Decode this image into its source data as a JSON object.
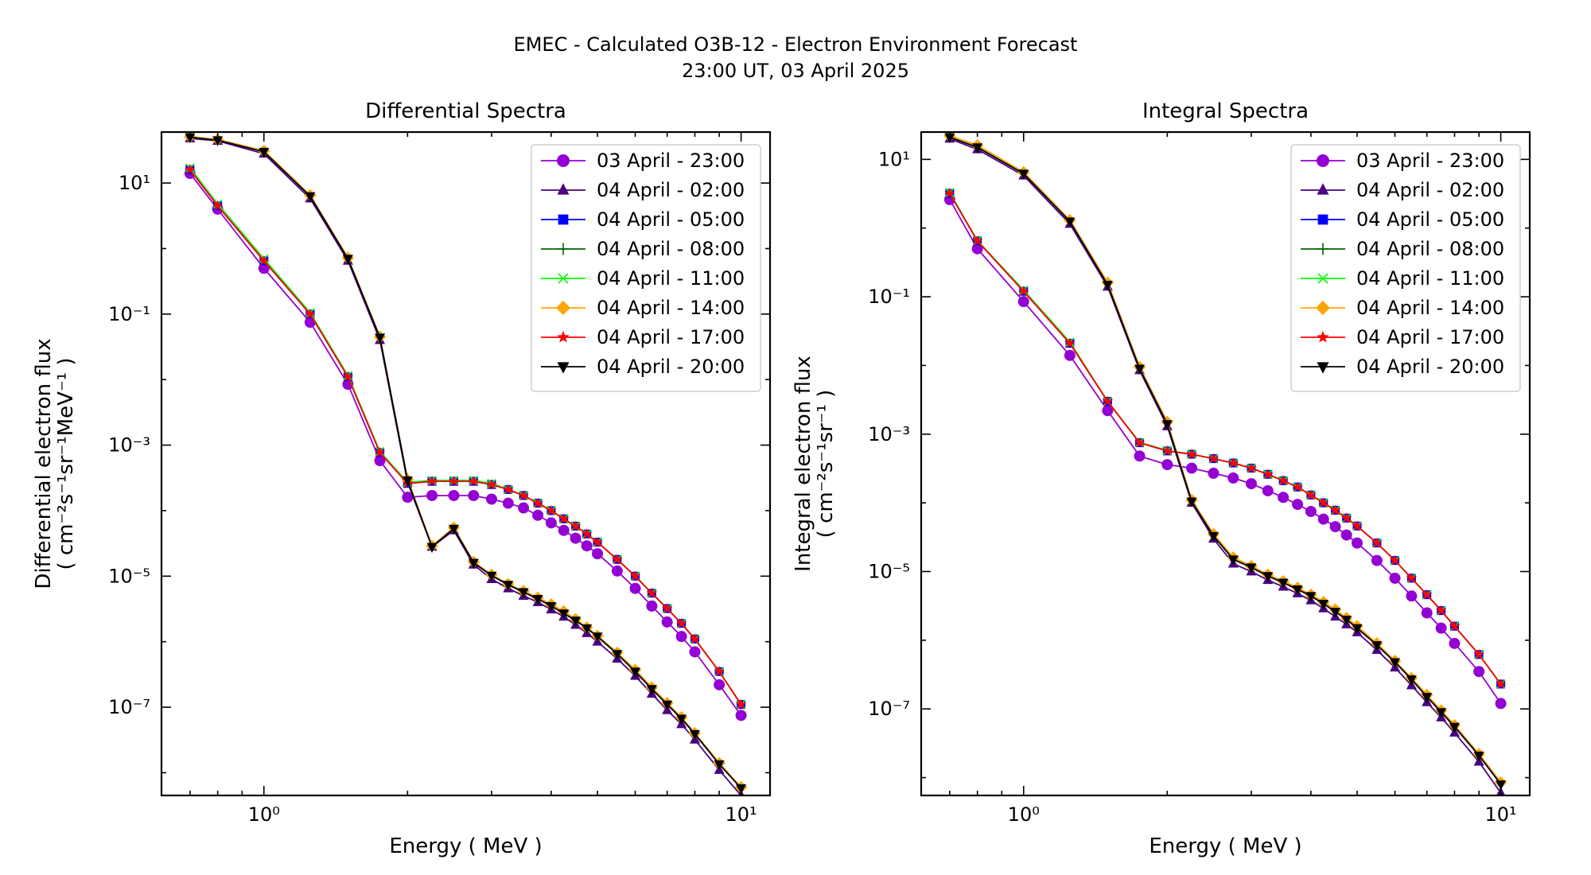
{
  "suptitle": {
    "line1": "EMEC - Calculated O3B-12 - Electron Environment Forecast",
    "line2": "23:00 UT, 03 April 2025"
  },
  "styles": [
    {
      "color": "#9400D3",
      "marker": "circle"
    },
    {
      "color": "#4B0082",
      "marker": "triangle-up"
    },
    {
      "color": "#0000FF",
      "marker": "square"
    },
    {
      "color": "#006400",
      "marker": "plus"
    },
    {
      "color": "#00FF00",
      "marker": "x"
    },
    {
      "color": "#FFA500",
      "marker": "diamond"
    },
    {
      "color": "#FF0000",
      "marker": "star"
    },
    {
      "color": "#000000",
      "marker": "triangle-down"
    }
  ],
  "chart_data": [
    {
      "type": "line",
      "title": "Differential Spectra",
      "xlabel": "Energy ( MeV )",
      "ylabel_line1": "Differential electron flux",
      "ylabel_line2": "( cm⁻²s⁻¹sr⁻¹MeV⁻¹ )",
      "xscale": "log",
      "yscale": "log",
      "xlim": [
        0.61,
        11.5
      ],
      "ylim": [
        4.5e-09,
        60
      ],
      "xticks": [
        1,
        10
      ],
      "xtick_labels": [
        "10⁰",
        "10¹"
      ],
      "yticks": [
        1e-07,
        1e-05,
        0.001,
        0.1,
        10
      ],
      "ytick_labels": [
        "10⁻⁷",
        "10⁻⁵",
        "10⁻³",
        "10⁻¹",
        "10¹"
      ],
      "legend_loc": "upper right",
      "x": [
        0.7,
        0.8,
        1.0,
        1.25,
        1.5,
        1.75,
        2.0,
        2.25,
        2.5,
        2.75,
        3.0,
        3.25,
        3.5,
        3.75,
        4.0,
        4.25,
        4.5,
        4.75,
        5.0,
        5.5,
        6.0,
        6.5,
        7.0,
        7.5,
        8.0,
        9.0,
        10.0
      ],
      "series": [
        {
          "name": "03 April - 23:00",
          "values": [
            14,
            4,
            0.5,
            0.075,
            0.0085,
            0.00058,
            0.00016,
            0.00017,
            0.00017,
            0.00017,
            0.00015,
            0.00013,
            0.00011,
            8.5e-05,
            6.5e-05,
            5e-05,
            3.8e-05,
            2.9e-05,
            2.2e-05,
            1.2e-05,
            6.5e-06,
            3.5e-06,
            2e-06,
            1.2e-06,
            7e-07,
            2.2e-07,
            7.5e-08
          ]
        },
        {
          "name": "04 April - 02:00",
          "values": [
            48,
            44,
            28,
            5.8,
            0.65,
            0.04,
            0.00027,
            2.8e-05,
            5e-05,
            1.5e-05,
            9e-06,
            6.5e-06,
            5e-06,
            4e-06,
            3.1e-06,
            2.4e-06,
            1.8e-06,
            1.35e-06,
            1e-06,
            5.5e-07,
            3e-07,
            1.6e-07,
            9e-08,
            5.5e-08,
            3.2e-08,
            1.1e-08,
            4.5e-09
          ]
        },
        {
          "name": "04 April - 05:00",
          "values": [
            16,
            4.5,
            0.65,
            0.1,
            0.011,
            0.00077,
            0.00026,
            0.00028,
            0.00028,
            0.00028,
            0.00025,
            0.00021,
            0.00017,
            0.00013,
            0.0001,
            7.5e-05,
            5.8e-05,
            4.4e-05,
            3.3e-05,
            1.8e-05,
            1e-05,
            5.5e-06,
            3.2e-06,
            1.9e-06,
            1.1e-06,
            3.5e-07,
            1.1e-07
          ]
        },
        {
          "name": "04 April - 08:00",
          "values": [
            51,
            46,
            31,
            6.5,
            0.72,
            0.045,
            0.0003,
            2.9e-05,
            5.5e-05,
            1.65e-05,
            1.05e-05,
            7.6e-06,
            5.9e-06,
            4.7e-06,
            3.7e-06,
            2.9e-06,
            2.2e-06,
            1.65e-06,
            1.23e-06,
            6.8e-07,
            3.7e-07,
            2e-07,
            1.15e-07,
            7e-08,
            4e-08,
            1.4e-08,
            6e-09
          ]
        },
        {
          "name": "04 April - 11:00",
          "values": [
            17,
            4.8,
            0.7,
            0.105,
            0.0115,
            0.0008,
            0.00027,
            0.00029,
            0.00029,
            0.00029,
            0.00026,
            0.00021,
            0.00017,
            0.00013,
            0.0001,
            7.5e-05,
            5.8e-05,
            4.4e-05,
            3.3e-05,
            1.8e-05,
            1e-05,
            5.5e-06,
            3.2e-06,
            1.9e-06,
            1.1e-06,
            3.5e-07,
            1.1e-07
          ]
        },
        {
          "name": "04 April - 14:00",
          "values": [
            51,
            46,
            31,
            6.5,
            0.72,
            0.045,
            0.0003,
            2.9e-05,
            5.5e-05,
            1.65e-05,
            1.05e-05,
            7.6e-06,
            5.9e-06,
            4.7e-06,
            3.7e-06,
            2.9e-06,
            2.2e-06,
            1.65e-06,
            1.23e-06,
            6.8e-07,
            3.7e-07,
            2e-07,
            1.15e-07,
            7e-08,
            4e-08,
            1.4e-08,
            6e-09
          ]
        },
        {
          "name": "04 April - 17:00",
          "values": [
            16,
            4.5,
            0.65,
            0.1,
            0.011,
            0.00077,
            0.00026,
            0.00028,
            0.00028,
            0.00028,
            0.00025,
            0.00021,
            0.00017,
            0.00013,
            0.0001,
            7.5e-05,
            5.8e-05,
            4.4e-05,
            3.3e-05,
            1.8e-05,
            1e-05,
            5.5e-06,
            3.2e-06,
            1.9e-06,
            1.1e-06,
            3.5e-07,
            1.1e-07
          ]
        },
        {
          "name": "04 April - 20:00",
          "values": [
            50,
            45,
            30,
            6.3,
            0.7,
            0.044,
            0.00029,
            2.8e-05,
            5.3e-05,
            1.6e-05,
            1.02e-05,
            7.4e-06,
            5.7e-06,
            4.5e-06,
            3.5e-06,
            2.7e-06,
            2.1e-06,
            1.6e-06,
            1.2e-06,
            6.5e-07,
            3.5e-07,
            1.9e-07,
            1.1e-07,
            6.7e-08,
            3.9e-08,
            1.35e-08,
            5.8e-09
          ]
        }
      ]
    },
    {
      "type": "line",
      "title": "Integral Spectra",
      "xlabel": "Energy ( MeV )",
      "ylabel_line1": "Integral electron flux",
      "ylabel_line2": "( cm⁻²s⁻¹sr⁻¹ )",
      "xscale": "log",
      "yscale": "log",
      "xlim": [
        0.61,
        11.5
      ],
      "ylim": [
        5.5e-09,
        25
      ],
      "xticks": [
        1,
        10
      ],
      "xtick_labels": [
        "10⁰",
        "10¹"
      ],
      "yticks": [
        1e-07,
        1e-05,
        0.001,
        0.1,
        10
      ],
      "ytick_labels": [
        "10⁻⁷",
        "10⁻⁵",
        "10⁻³",
        "10⁻¹",
        "10¹"
      ],
      "legend_loc": "upper right",
      "x": [
        0.7,
        0.8,
        1.0,
        1.25,
        1.5,
        1.75,
        2.0,
        2.25,
        2.5,
        2.75,
        3.0,
        3.25,
        3.5,
        3.75,
        4.0,
        4.25,
        4.5,
        4.75,
        5.0,
        5.5,
        6.0,
        6.5,
        7.0,
        7.5,
        8.0,
        9.0,
        10.0
      ],
      "series": [
        {
          "name": "03 April - 23:00",
          "values": [
            2.6,
            0.5,
            0.085,
            0.014,
            0.0022,
            0.00048,
            0.00036,
            0.00032,
            0.00027,
            0.00023,
            0.00019,
            0.00015,
            0.00012,
            9.5e-05,
            7.5e-05,
            5.8e-05,
            4.5e-05,
            3.4e-05,
            2.6e-05,
            1.45e-05,
            8e-06,
            4.4e-06,
            2.5e-06,
            1.5e-06,
            9e-07,
            3.5e-07,
            1.2e-07
          ]
        },
        {
          "name": "04 April - 02:00",
          "values": [
            20,
            14,
            5.8,
            1.15,
            0.14,
            0.0085,
            0.0013,
            0.0001,
            3e-05,
            1.3e-05,
            1e-05,
            7.5e-06,
            6e-06,
            4.8e-06,
            3.8e-06,
            2.9e-06,
            2.2e-06,
            1.7e-06,
            1.3e-06,
            7.2e-07,
            4e-07,
            2.2e-07,
            1.25e-07,
            7.5e-08,
            4.5e-08,
            1.7e-08,
            6e-09
          ]
        },
        {
          "name": "04 April - 05:00",
          "values": [
            3.2,
            0.65,
            0.12,
            0.021,
            0.003,
            0.00075,
            0.00057,
            0.00051,
            0.00044,
            0.00038,
            0.00032,
            0.00026,
            0.00021,
            0.00017,
            0.00013,
            0.0001,
            7.8e-05,
            6e-05,
            4.6e-05,
            2.6e-05,
            1.45e-05,
            8e-06,
            4.6e-06,
            2.7e-06,
            1.6e-06,
            6.2e-07,
            2.3e-07
          ]
        },
        {
          "name": "04 April - 08:00",
          "values": [
            22,
            16,
            6.5,
            1.3,
            0.16,
            0.0095,
            0.0015,
            0.00011,
            3.5e-05,
            1.6e-05,
            1.2e-05,
            9e-06,
            7.2e-06,
            5.8e-06,
            4.6e-06,
            3.6e-06,
            2.8e-06,
            2.1e-06,
            1.6e-06,
            9e-07,
            5e-07,
            2.8e-07,
            1.6e-07,
            9.5e-08,
            5.8e-08,
            2.2e-08,
            8.5e-09
          ]
        },
        {
          "name": "04 April - 11:00",
          "values": [
            3.3,
            0.66,
            0.125,
            0.022,
            0.003,
            0.00076,
            0.00058,
            0.00051,
            0.00044,
            0.00038,
            0.00032,
            0.00026,
            0.00021,
            0.00017,
            0.00013,
            0.0001,
            7.8e-05,
            6e-05,
            4.6e-05,
            2.6e-05,
            1.45e-05,
            8e-06,
            4.6e-06,
            2.7e-06,
            1.6e-06,
            6.2e-07,
            2.3e-07
          ]
        },
        {
          "name": "04 April - 14:00",
          "values": [
            22,
            16,
            6.5,
            1.3,
            0.16,
            0.0095,
            0.0015,
            0.00011,
            3.5e-05,
            1.6e-05,
            1.2e-05,
            9e-06,
            7.2e-06,
            5.8e-06,
            4.6e-06,
            3.6e-06,
            2.8e-06,
            2.1e-06,
            1.6e-06,
            9e-07,
            5e-07,
            2.8e-07,
            1.6e-07,
            9.5e-08,
            5.8e-08,
            2.2e-08,
            8.5e-09
          ]
        },
        {
          "name": "04 April - 17:00",
          "values": [
            3.2,
            0.65,
            0.12,
            0.021,
            0.003,
            0.00075,
            0.00057,
            0.00051,
            0.00044,
            0.00038,
            0.00032,
            0.00026,
            0.00021,
            0.00017,
            0.00013,
            0.0001,
            7.8e-05,
            6e-05,
            4.6e-05,
            2.6e-05,
            1.45e-05,
            8e-06,
            4.6e-06,
            2.7e-06,
            1.6e-06,
            6.2e-07,
            2.3e-07
          ]
        },
        {
          "name": "04 April - 20:00",
          "values": [
            21,
            15,
            6.2,
            1.25,
            0.15,
            0.009,
            0.0014,
            0.000105,
            3.3e-05,
            1.5e-05,
            1.15e-05,
            8.6e-06,
            6.9e-06,
            5.5e-06,
            4.4e-06,
            3.4e-06,
            2.6e-06,
            2e-06,
            1.5e-06,
            8.5e-07,
            4.8e-07,
            2.7e-07,
            1.5e-07,
            9e-08,
            5.5e-08,
            2.1e-08,
            8e-09
          ]
        }
      ]
    }
  ]
}
